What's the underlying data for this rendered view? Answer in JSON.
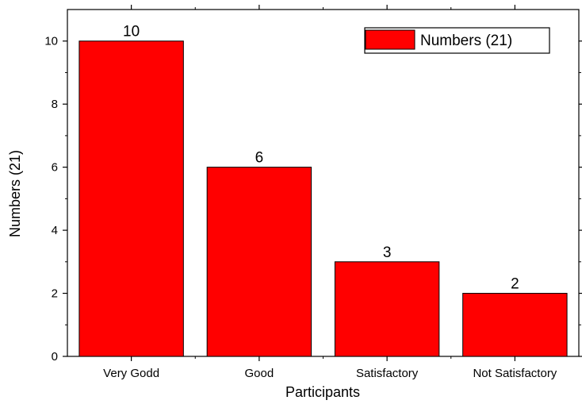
{
  "chart_data": {
    "type": "bar",
    "categories": [
      "Very Godd",
      "Good",
      "Satisfactory",
      "Not Satisfactory"
    ],
    "series": [
      {
        "name": "Numbers (21)",
        "values": [
          10,
          6,
          3,
          2
        ]
      }
    ],
    "data_labels": [
      "10",
      "6",
      "3",
      "2"
    ],
    "xlabel": "Participants",
    "ylabel": "Numbers (21)",
    "ylim": [
      0,
      11
    ],
    "yticks": [
      0,
      2,
      4,
      6,
      8,
      10
    ],
    "grid": false,
    "legend_position": "top-right",
    "bar_color": "#ff0000"
  }
}
